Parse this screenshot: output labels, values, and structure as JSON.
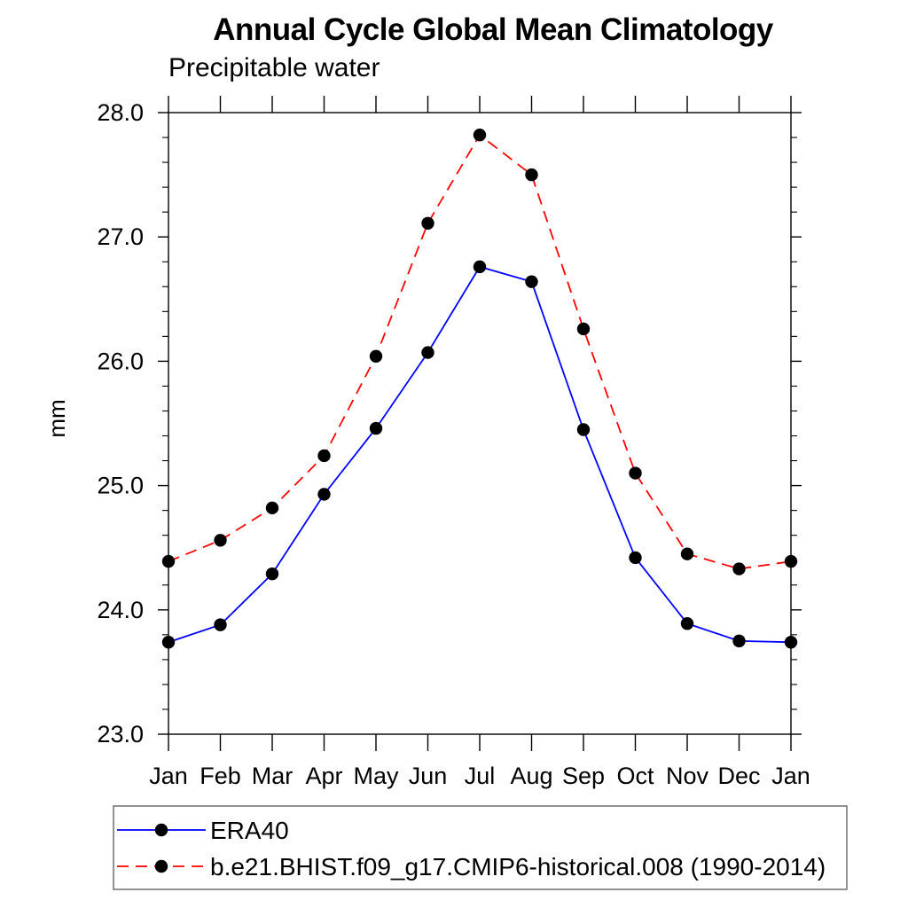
{
  "title": "Annual Cycle Global Mean Climatology",
  "subtitle": "Precipitable water",
  "chart_data": {
    "type": "line",
    "x_categories": [
      "Jan",
      "Feb",
      "Mar",
      "Apr",
      "May",
      "Jun",
      "Jul",
      "Aug",
      "Sep",
      "Oct",
      "Nov",
      "Dec",
      "Jan"
    ],
    "ylabel": "mm",
    "ylim": [
      23.0,
      28.0
    ],
    "ytick_step": 1.0,
    "ytick_minor_step": 0.2,
    "ytick_labels": [
      "23.0",
      "24.0",
      "25.0",
      "26.0",
      "27.0",
      "28.0"
    ],
    "grid": false,
    "legend_position": "bottom-left",
    "frame_color": "#000000",
    "marker_color": "#000000",
    "series": [
      {
        "name": "ERA40",
        "color": "#0000ff",
        "line_style": "solid",
        "marker": "filled-circle",
        "values": [
          23.74,
          23.88,
          24.29,
          24.93,
          25.46,
          26.07,
          26.76,
          26.64,
          25.45,
          24.42,
          23.89,
          23.75,
          23.74
        ]
      },
      {
        "name": "b.e21.BHIST.f09_g17.CMIP6-historical.008 (1990-2014)",
        "color": "#ff0000",
        "line_style": "dashed",
        "marker": "filled-circle",
        "values": [
          24.39,
          24.56,
          24.82,
          25.24,
          26.04,
          27.11,
          27.82,
          27.5,
          26.26,
          25.1,
          24.45,
          24.33,
          24.39
        ]
      }
    ]
  }
}
